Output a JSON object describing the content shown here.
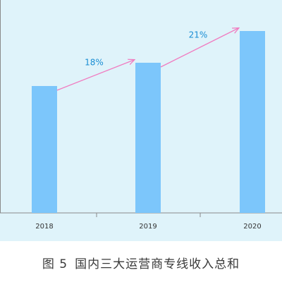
{
  "caption": {
    "label": "图 5",
    "title": "国内三大运营商专线收入总和"
  },
  "chart_data": {
    "type": "bar",
    "categories": [
      "2018",
      "2019",
      "2020"
    ],
    "values": [
      60,
      71,
      86
    ],
    "ylim": [
      0,
      100
    ],
    "grid": false,
    "growth_annotations": [
      {
        "from": "2018",
        "to": "2019",
        "label": "18%"
      },
      {
        "from": "2019",
        "to": "2020",
        "label": "21%"
      }
    ],
    "colors": {
      "bar": "#7cc6fb",
      "arrow": "#f07cc0",
      "annotation_text": "#1a8ed4",
      "tick_text": "#333333",
      "axis": "#8a8a8a",
      "background": "#dff3fa"
    }
  }
}
